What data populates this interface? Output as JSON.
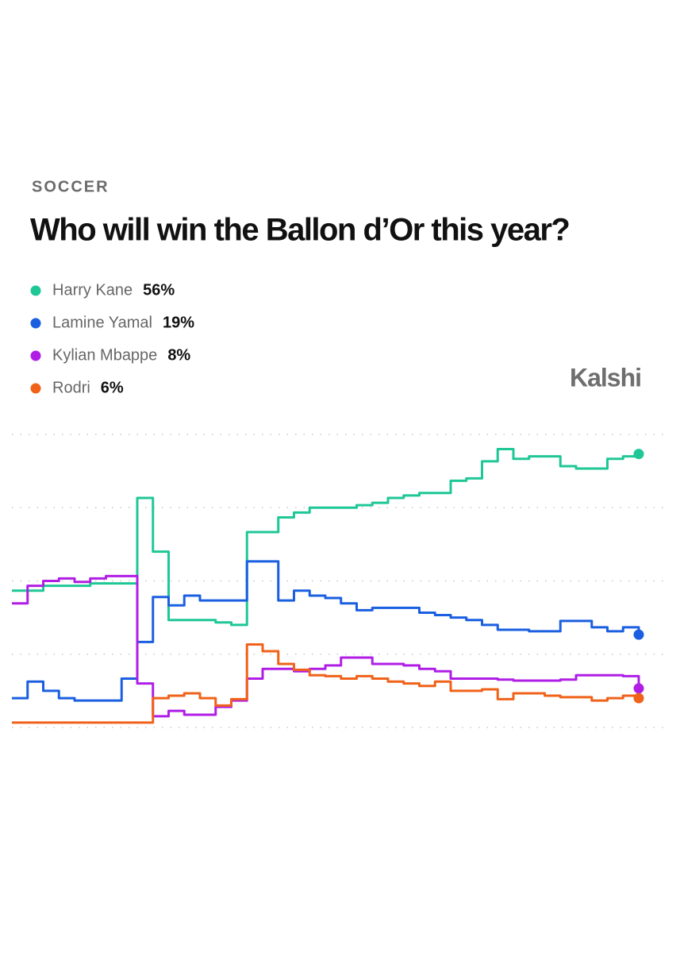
{
  "chart_data": {
    "type": "line",
    "step": true,
    "category": "SOCCER",
    "title": "Who will win the Ballon d’Or this year?",
    "brand": "Kalshi",
    "ylim": [
      0,
      60
    ],
    "yticks": [
      0,
      15,
      30,
      45,
      60
    ],
    "grid": true,
    "series": [
      {
        "name": "Harry Kane",
        "color": "#1fc796",
        "value_label": "56%",
        "values": [
          28,
          28,
          29,
          29,
          29,
          29.5,
          29.5,
          29.5,
          47,
          36,
          22,
          22,
          22,
          21.5,
          21,
          40,
          40,
          43,
          44,
          45,
          45,
          45,
          45.5,
          46,
          47,
          47.5,
          48,
          48,
          50.5,
          51,
          54.5,
          57,
          55,
          55.5,
          55.5,
          53.5,
          53,
          53,
          55,
          55.5,
          56
        ]
      },
      {
        "name": "Lamine Yamal",
        "color": "#1a5fe0",
        "value_label": "19%",
        "values": [
          6,
          9.4,
          7.5,
          6,
          5.5,
          5.5,
          5.5,
          10,
          17.5,
          26.7,
          25,
          27,
          26,
          26,
          26,
          34,
          34,
          26,
          28,
          27,
          26.5,
          25.4,
          24,
          24.5,
          24.5,
          24.5,
          23.5,
          23,
          22.5,
          22,
          21,
          20,
          20,
          19.7,
          19.7,
          21.8,
          21.8,
          20.5,
          19.7,
          20.5,
          19
        ]
      },
      {
        "name": "Kylian Mbappe",
        "color": "#b01ee6",
        "value_label": "8%",
        "values": [
          25.4,
          29,
          30,
          30.5,
          29.8,
          30.5,
          31,
          31,
          9,
          2.3,
          3.4,
          2.6,
          2.6,
          4.2,
          5.5,
          10,
          12,
          12,
          11.5,
          12,
          12.7,
          14.3,
          14.3,
          13,
          13,
          12.7,
          12,
          11.5,
          10,
          10,
          10,
          9.8,
          9.6,
          9.6,
          9.6,
          9.8,
          10.7,
          10.7,
          10.7,
          10.5,
          8
        ]
      },
      {
        "name": "Rodri",
        "color": "#f0621a",
        "value_label": "6%",
        "values": [
          1,
          1,
          1,
          1,
          1,
          1,
          1,
          1,
          1,
          6,
          6.5,
          7,
          6,
          4.5,
          5.8,
          17,
          15.6,
          13,
          11.8,
          10.7,
          10.5,
          10,
          10.5,
          10,
          9.4,
          9,
          8.5,
          9.4,
          7.5,
          7.5,
          7.8,
          5.8,
          7,
          7,
          6.5,
          6.2,
          6.2,
          5.5,
          6,
          6.5,
          6
        ]
      }
    ]
  }
}
